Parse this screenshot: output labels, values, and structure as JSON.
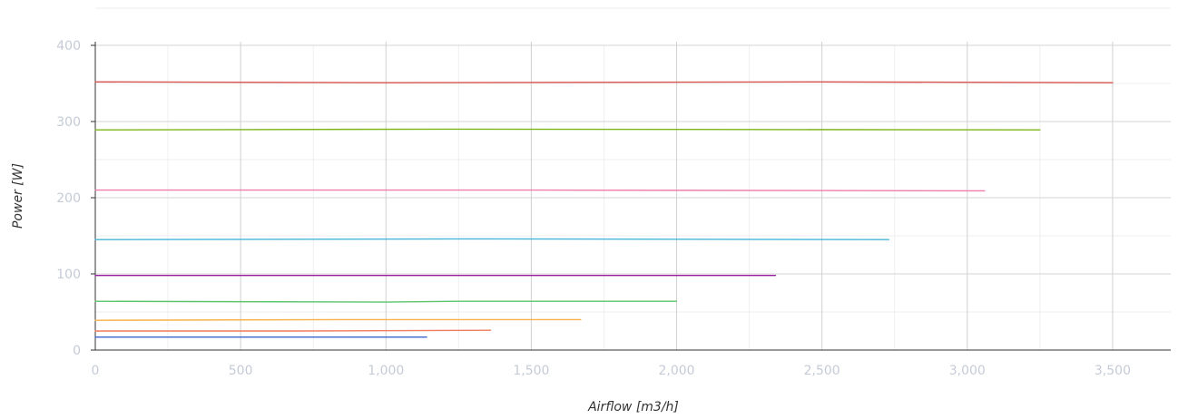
{
  "chart_data": {
    "type": "line",
    "xlabel": "Airflow [m3/h]",
    "ylabel": "Power [W]",
    "xlim": [
      0,
      3700
    ],
    "ylim": [
      0,
      400
    ],
    "x_ticks": [
      0,
      500,
      1000,
      1500,
      2000,
      2500,
      3000,
      3500
    ],
    "x_tick_labels": [
      "0",
      "500",
      "1,000",
      "1,500",
      "2,000",
      "2,500",
      "3,000",
      "3,500"
    ],
    "y_ticks": [
      0,
      100,
      200,
      300,
      400
    ],
    "y_tick_labels": [
      "0",
      "100",
      "200",
      "300",
      "400"
    ],
    "grid": true,
    "series": [
      {
        "color": "#3c64d0",
        "x": [
          0,
          570,
          1140
        ],
        "y": [
          17,
          17,
          17
        ]
      },
      {
        "color": "#f07a5a",
        "x": [
          0,
          680,
          1360
        ],
        "y": [
          25,
          25,
          26
        ]
      },
      {
        "color": "#f7b146",
        "x": [
          0,
          835,
          1670
        ],
        "y": [
          39,
          40,
          40
        ]
      },
      {
        "color": "#5cc46c",
        "x": [
          0,
          1000,
          1250,
          2000
        ],
        "y": [
          64,
          63,
          64,
          64
        ]
      },
      {
        "color": "#9a1aa3",
        "x": [
          0,
          1170,
          2340
        ],
        "y": [
          98,
          98,
          98
        ]
      },
      {
        "color": "#45b6d9",
        "x": [
          0,
          1365,
          2730
        ],
        "y": [
          145,
          146,
          145
        ]
      },
      {
        "color": "#ef7cad",
        "x": [
          0,
          1530,
          3060
        ],
        "y": [
          210,
          210,
          209
        ]
      },
      {
        "color": "#7cb518",
        "x": [
          0,
          1200,
          3250
        ],
        "y": [
          289,
          290,
          289
        ]
      },
      {
        "color": "#d9534f",
        "x": [
          0,
          1000,
          2500,
          3500
        ],
        "y": [
          352,
          351,
          352,
          351
        ]
      }
    ]
  }
}
